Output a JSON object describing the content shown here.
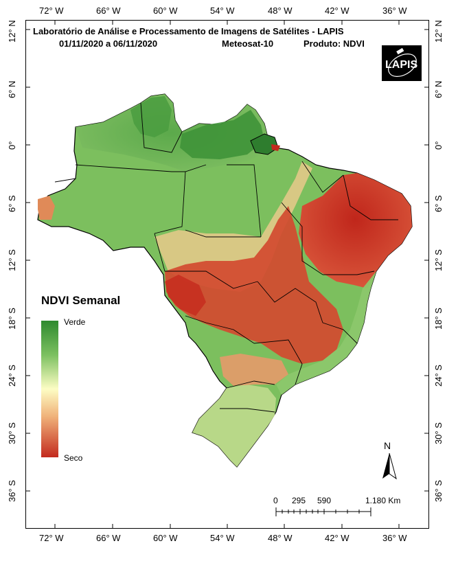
{
  "header": {
    "title": "Laboratório de Análise e Processamento de Imagens de Satélites - LAPIS",
    "date_range": "01/11/2020  a  06/11/2020",
    "satellite": "Meteosat-10",
    "product": "Produto: NDVI"
  },
  "logo": {
    "text": "LAPIS"
  },
  "longitude_ticks": [
    "72° W",
    "66° W",
    "60° W",
    "54° W",
    "48° W",
    "42° W",
    "36° W"
  ],
  "latitude_ticks": [
    "12° N",
    "6° N",
    "0°",
    "6° S",
    "12° S",
    "18° S",
    "24° S",
    "30° S",
    "36° S"
  ],
  "legend": {
    "title": "NDVI Semanal",
    "top_label": "Verde",
    "bottom_label": "Seco",
    "colors": {
      "green": "#2e8a2e",
      "yellow": "#fdfdc4",
      "red": "#c32a1e"
    }
  },
  "north_arrow": {
    "label": "N"
  },
  "scale_bar": {
    "labels": [
      "0",
      "295",
      "590",
      "1.180 Km"
    ]
  }
}
